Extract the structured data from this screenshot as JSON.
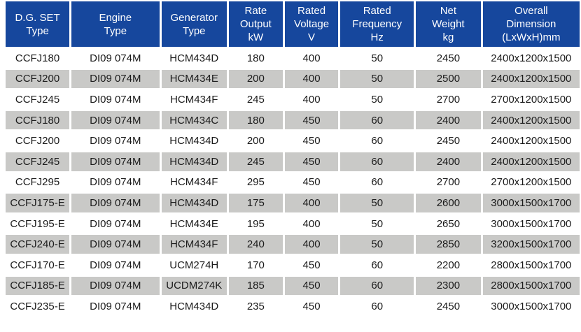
{
  "title": "D.G. SET specification table",
  "colors": {
    "header_bg": "#16479D",
    "header_text": "#FFFFFF",
    "row_gray": "#C9C9C7",
    "row_white": "#FFFFFF",
    "cell_text": "#1B1B1B",
    "page_bg": "#FFFFFF"
  },
  "table": {
    "columns": [
      {
        "id": "dg-set-type",
        "lines": [
          "D.G. SET",
          "Type"
        ]
      },
      {
        "id": "engine-type",
        "lines": [
          "Engine",
          "Type"
        ]
      },
      {
        "id": "generator-type",
        "lines": [
          "Generator",
          "Type"
        ]
      },
      {
        "id": "rate-output",
        "lines": [
          "Rate",
          "Output",
          "kW"
        ]
      },
      {
        "id": "rated-voltage",
        "lines": [
          "Rated",
          "Voltage",
          "V"
        ]
      },
      {
        "id": "rated-frequency",
        "lines": [
          "Rated",
          "Frequency",
          "Hz"
        ]
      },
      {
        "id": "net-weight",
        "lines": [
          "Net",
          "Weight",
          "kg"
        ]
      },
      {
        "id": "overall-dimension",
        "lines": [
          "Overall",
          "Dimension",
          "(LxWxH)mm"
        ]
      }
    ],
    "rows": [
      [
        "CCFJ180",
        "DI09 074M",
        "HCM434D",
        "180",
        "400",
        "50",
        "2450",
        "2400x1200x1500"
      ],
      [
        "CCFJ200",
        "DI09 074M",
        "HCM434E",
        "200",
        "400",
        "50",
        "2500",
        "2400x1200x1500"
      ],
      [
        "CCFJ245",
        "DI09 074M",
        "HCM434F",
        "245",
        "400",
        "50",
        "2700",
        "2700x1200x1500"
      ],
      [
        "CCFJ180",
        "DI09 074M",
        "HCM434C",
        "180",
        "450",
        "60",
        "2400",
        "2400x1200x1500"
      ],
      [
        "CCFJ200",
        "DI09 074M",
        "HCM434D",
        "200",
        "450",
        "60",
        "2450",
        "2400x1200x1500"
      ],
      [
        "CCFJ245",
        "DI09 074M",
        "HCM434D",
        "245",
        "450",
        "60",
        "2400",
        "2400x1200x1500"
      ],
      [
        "CCFJ295",
        "DI09 074M",
        "HCM434F",
        "295",
        "450",
        "60",
        "2700",
        "2700x1200x1500"
      ],
      [
        "CCFJ175-E",
        "DI09 074M",
        "HCM434D",
        "175",
        "400",
        "50",
        "2600",
        "3000x1500x1700"
      ],
      [
        "CCFJ195-E",
        "DI09 074M",
        "HCM434E",
        "195",
        "400",
        "50",
        "2650",
        "3000x1500x1700"
      ],
      [
        "CCFJ240-E",
        "DI09 074M",
        "HCM434F",
        "240",
        "400",
        "50",
        "2850",
        "3200x1500x1700"
      ],
      [
        "CCFJ170-E",
        "DI09 074M",
        "UCM274H",
        "170",
        "450",
        "60",
        "2200",
        "2800x1500x1700"
      ],
      [
        "CCFJ185-E",
        "DI09 074M",
        "UCDM274K",
        "185",
        "450",
        "60",
        "2300",
        "2800x1500x1700"
      ],
      [
        "CCFJ235-E",
        "DI09 074M",
        "HCM434D",
        "235",
        "450",
        "60",
        "2450",
        "3000x1500x1700"
      ]
    ]
  }
}
